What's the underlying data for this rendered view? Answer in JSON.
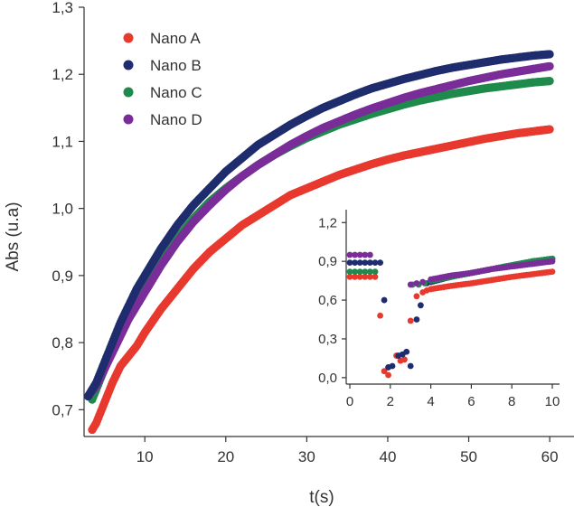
{
  "chart_data": [
    {
      "type": "scatter",
      "xlabel": "t(s)",
      "ylabel": "Abs (u.a)",
      "xlim": [
        2.5,
        63
      ],
      "ylim": [
        0.66,
        1.3
      ],
      "xticks": [
        "10",
        "20",
        "30",
        "40",
        "50",
        "60"
      ],
      "yticks": [
        "0,7",
        "0,8",
        "0,9",
        "1,0",
        "1,1",
        "1,2",
        "1,3"
      ],
      "grid": false,
      "legend": "top-left",
      "series": [
        {
          "name": "Nano A",
          "color": "#e8392f",
          "points": [
            [
              3.5,
              0.67
            ],
            [
              4,
              0.68
            ],
            [
              4.5,
              0.695
            ],
            [
              5,
              0.71
            ],
            [
              6,
              0.74
            ],
            [
              7,
              0.765
            ],
            [
              8,
              0.78
            ],
            [
              9,
              0.795
            ],
            [
              10,
              0.815
            ],
            [
              12,
              0.85
            ],
            [
              14,
              0.88
            ],
            [
              16,
              0.91
            ],
            [
              18,
              0.935
            ],
            [
              20,
              0.955
            ],
            [
              22,
              0.975
            ],
            [
              24,
              0.99
            ],
            [
              26,
              1.005
            ],
            [
              28,
              1.02
            ],
            [
              30,
              1.03
            ],
            [
              32,
              1.04
            ],
            [
              34,
              1.05
            ],
            [
              36,
              1.058
            ],
            [
              38,
              1.066
            ],
            [
              40,
              1.073
            ],
            [
              42,
              1.079
            ],
            [
              44,
              1.084
            ],
            [
              46,
              1.089
            ],
            [
              48,
              1.094
            ],
            [
              50,
              1.099
            ],
            [
              52,
              1.104
            ],
            [
              54,
              1.108
            ],
            [
              56,
              1.112
            ],
            [
              58,
              1.115
            ],
            [
              60,
              1.118
            ]
          ]
        },
        {
          "name": "Nano B",
          "color": "#1f2d6e",
          "points": [
            [
              3,
              0.72
            ],
            [
              4,
              0.74
            ],
            [
              5,
              0.77
            ],
            [
              6,
              0.8
            ],
            [
              7,
              0.83
            ],
            [
              8,
              0.855
            ],
            [
              9,
              0.88
            ],
            [
              10,
              0.9
            ],
            [
              12,
              0.94
            ],
            [
              14,
              0.975
            ],
            [
              16,
              1.005
            ],
            [
              18,
              1.03
            ],
            [
              20,
              1.055
            ],
            [
              22,
              1.075
            ],
            [
              24,
              1.095
            ],
            [
              26,
              1.11
            ],
            [
              28,
              1.125
            ],
            [
              30,
              1.138
            ],
            [
              32,
              1.15
            ],
            [
              34,
              1.16
            ],
            [
              36,
              1.17
            ],
            [
              38,
              1.179
            ],
            [
              40,
              1.186
            ],
            [
              42,
              1.193
            ],
            [
              44,
              1.199
            ],
            [
              46,
              1.205
            ],
            [
              48,
              1.21
            ],
            [
              50,
              1.214
            ],
            [
              52,
              1.218
            ],
            [
              54,
              1.222
            ],
            [
              56,
              1.225
            ],
            [
              58,
              1.228
            ],
            [
              60,
              1.23
            ]
          ]
        },
        {
          "name": "Nano C",
          "color": "#1f8a4c",
          "points": [
            [
              3.5,
              0.715
            ],
            [
              4,
              0.73
            ],
            [
              5,
              0.76
            ],
            [
              6,
              0.79
            ],
            [
              7,
              0.815
            ],
            [
              8,
              0.84
            ],
            [
              9,
              0.86
            ],
            [
              10,
              0.88
            ],
            [
              12,
              0.92
            ],
            [
              14,
              0.955
            ],
            [
              16,
              0.985
            ],
            [
              18,
              1.01
            ],
            [
              20,
              1.03
            ],
            [
              22,
              1.048
            ],
            [
              24,
              1.065
            ],
            [
              26,
              1.08
            ],
            [
              28,
              1.093
            ],
            [
              30,
              1.105
            ],
            [
              32,
              1.115
            ],
            [
              34,
              1.125
            ],
            [
              36,
              1.133
            ],
            [
              38,
              1.141
            ],
            [
              40,
              1.148
            ],
            [
              42,
              1.155
            ],
            [
              44,
              1.161
            ],
            [
              46,
              1.166
            ],
            [
              48,
              1.171
            ],
            [
              50,
              1.175
            ],
            [
              52,
              1.179
            ],
            [
              54,
              1.182
            ],
            [
              56,
              1.185
            ],
            [
              58,
              1.188
            ],
            [
              60,
              1.19
            ]
          ]
        },
        {
          "name": "Nano D",
          "color": "#7a2c98",
          "points": [
            [
              3,
              0.72
            ],
            [
              4,
              0.735
            ],
            [
              5,
              0.76
            ],
            [
              6,
              0.785
            ],
            [
              7,
              0.81
            ],
            [
              8,
              0.835
            ],
            [
              9,
              0.855
            ],
            [
              10,
              0.875
            ],
            [
              12,
              0.915
            ],
            [
              14,
              0.95
            ],
            [
              16,
              0.98
            ],
            [
              18,
              1.005
            ],
            [
              20,
              1.028
            ],
            [
              22,
              1.048
            ],
            [
              24,
              1.065
            ],
            [
              26,
              1.08
            ],
            [
              28,
              1.095
            ],
            [
              30,
              1.108
            ],
            [
              32,
              1.12
            ],
            [
              34,
              1.13
            ],
            [
              36,
              1.14
            ],
            [
              38,
              1.149
            ],
            [
              40,
              1.157
            ],
            [
              42,
              1.165
            ],
            [
              44,
              1.172
            ],
            [
              46,
              1.178
            ],
            [
              48,
              1.184
            ],
            [
              50,
              1.19
            ],
            [
              52,
              1.195
            ],
            [
              54,
              1.2
            ],
            [
              56,
              1.204
            ],
            [
              58,
              1.208
            ],
            [
              60,
              1.212
            ]
          ]
        }
      ]
    },
    {
      "type": "scatter",
      "xlabel": "",
      "ylabel": "",
      "xlim": [
        0,
        10
      ],
      "ylim": [
        -0.05,
        1.3
      ],
      "xticks": [
        "0",
        "2",
        "4",
        "6",
        "8",
        "10"
      ],
      "yticks": [
        "0,0",
        "0,3",
        "0,6",
        "0,9",
        "1,2"
      ],
      "grid": false,
      "series": [
        {
          "color": "#e8392f",
          "points": [
            [
              0,
              0.78
            ],
            [
              0.25,
              0.78
            ],
            [
              0.5,
              0.78
            ],
            [
              0.75,
              0.78
            ],
            [
              1,
              0.78
            ],
            [
              1.25,
              0.78
            ],
            [
              1.5,
              0.48
            ],
            [
              1.7,
              0.05
            ],
            [
              1.9,
              0.02
            ],
            [
              2.3,
              0.17
            ],
            [
              2.5,
              0.13
            ],
            [
              2.7,
              0.14
            ],
            [
              3,
              0.44
            ],
            [
              3.3,
              0.63
            ],
            [
              3.6,
              0.66
            ],
            [
              3.8,
              0.675
            ],
            [
              4,
              0.685
            ],
            [
              5,
              0.71
            ],
            [
              6,
              0.73
            ],
            [
              7,
              0.755
            ],
            [
              8,
              0.78
            ],
            [
              9,
              0.8
            ],
            [
              10,
              0.82
            ]
          ]
        },
        {
          "color": "#1f2d6e",
          "points": [
            [
              0,
              0.89
            ],
            [
              0.25,
              0.89
            ],
            [
              0.5,
              0.89
            ],
            [
              0.75,
              0.89
            ],
            [
              1,
              0.89
            ],
            [
              1.25,
              0.89
            ],
            [
              1.5,
              0.89
            ],
            [
              1.7,
              0.6
            ],
            [
              1.9,
              0.08
            ],
            [
              2.1,
              0.09
            ],
            [
              2.4,
              0.17
            ],
            [
              2.6,
              0.18
            ],
            [
              2.8,
              0.2
            ],
            [
              3,
              0.09
            ],
            [
              3.3,
              0.45
            ],
            [
              3.5,
              0.56
            ],
            [
              3.8,
              0.73
            ],
            [
              4,
              0.74
            ],
            [
              5,
              0.78
            ],
            [
              6,
              0.81
            ],
            [
              7,
              0.84
            ],
            [
              8,
              0.87
            ],
            [
              9,
              0.9
            ],
            [
              10,
              0.92
            ]
          ]
        },
        {
          "color": "#1f8a4c",
          "points": [
            [
              0,
              0.82
            ],
            [
              0.25,
              0.82
            ],
            [
              0.5,
              0.82
            ],
            [
              0.75,
              0.82
            ],
            [
              1,
              0.82
            ],
            [
              1.25,
              0.82
            ],
            [
              3.1,
              0.72
            ],
            [
              3.4,
              0.72
            ],
            [
              3.7,
              0.73
            ],
            [
              4,
              0.75
            ],
            [
              5,
              0.78
            ],
            [
              6,
              0.81
            ],
            [
              7,
              0.84
            ],
            [
              8,
              0.87
            ],
            [
              9,
              0.9
            ],
            [
              10,
              0.92
            ]
          ]
        },
        {
          "color": "#7a2c98",
          "points": [
            [
              0,
              0.95
            ],
            [
              0.25,
              0.95
            ],
            [
              0.5,
              0.95
            ],
            [
              0.75,
              0.95
            ],
            [
              1,
              0.95
            ],
            [
              3,
              0.72
            ],
            [
              3.3,
              0.73
            ],
            [
              3.6,
              0.74
            ],
            [
              4,
              0.76
            ],
            [
              5,
              0.79
            ],
            [
              6,
              0.81
            ],
            [
              7,
              0.84
            ],
            [
              8,
              0.86
            ],
            [
              9,
              0.88
            ],
            [
              10,
              0.9
            ]
          ]
        }
      ]
    }
  ]
}
